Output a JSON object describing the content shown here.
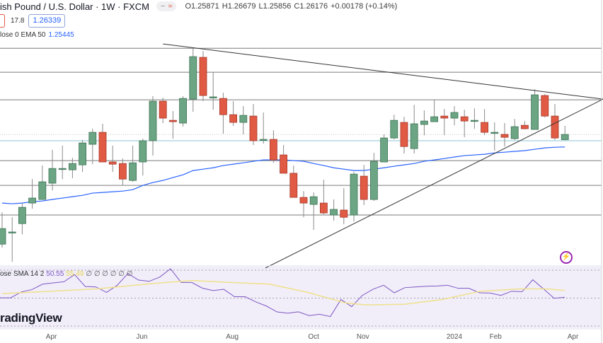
{
  "header": {
    "symbol_title": "ish Pound / U.S. Dollar · 1W · FXCM",
    "status_icons": [
      "minus-icon",
      "approx-icon"
    ],
    "open": "O1.25871",
    "high": "H1.26679",
    "low": "L1.25856",
    "close": "C1.26176",
    "change": "+0.00178 (+0.14%)",
    "spread": "17.8",
    "buy_price": "1.26339"
  },
  "indicators": {
    "ema": {
      "label": "lose 0 EMA 50",
      "value": "1.25445",
      "color": "#2962ff"
    },
    "rsi": {
      "label": "ose SMA 14 2",
      "rsi_value": "50.55",
      "sma_value": "55.49",
      "extra": "∅ ∅ ∅ ∅ ∅ ∅",
      "rsi_color": "#7e57c2",
      "sma_color": "#e8d44d"
    }
  },
  "logo": "radingView",
  "colors": {
    "up": "#6ba583",
    "down": "#e05a44",
    "background_rsi": "#f1eefa"
  },
  "chart_data": {
    "type": "candlestick",
    "ylim": [
      1.1854,
      1.3155
    ],
    "candles": [
      [
        1.1977,
        1.2163,
        1.1957,
        1.2068
      ],
      [
        1.2048,
        1.2134,
        1.1874,
        1.2048
      ],
      [
        1.2097,
        1.2217,
        1.2035,
        1.2192
      ],
      [
        1.2217,
        1.2357,
        1.2184,
        1.2246
      ],
      [
        1.2238,
        1.2436,
        1.2238,
        1.2341
      ],
      [
        1.2333,
        1.2527,
        1.2291,
        1.2419
      ],
      [
        1.2419,
        1.2552,
        1.2357,
        1.2419
      ],
      [
        1.2411,
        1.2481,
        1.2362,
        1.2448
      ],
      [
        1.244,
        1.2585,
        1.2399,
        1.2568
      ],
      [
        1.256,
        1.2651,
        1.2444,
        1.263
      ],
      [
        1.263,
        1.268,
        1.2457,
        1.2457
      ],
      [
        1.2457,
        1.2552,
        1.2399,
        1.2444
      ],
      [
        1.2448,
        1.2477,
        1.232,
        1.2357
      ],
      [
        1.2349,
        1.2552,
        1.2341,
        1.2452
      ],
      [
        1.2457,
        1.2593,
        1.2378,
        1.2581
      ],
      [
        1.2581,
        1.2841,
        1.2494,
        1.2812
      ],
      [
        1.2812,
        1.2832,
        1.2684,
        1.2713
      ],
      [
        1.27,
        1.2754,
        1.2593,
        1.2692
      ],
      [
        1.2684,
        1.2841,
        1.2663,
        1.2828
      ],
      [
        1.2824,
        1.3126,
        1.275,
        1.3072
      ],
      [
        1.3068,
        1.3105,
        1.2812,
        1.2845
      ],
      [
        1.2837,
        1.2981,
        1.2762,
        1.2837
      ],
      [
        1.2828,
        1.2861,
        1.2622,
        1.2733
      ],
      [
        1.2733,
        1.2812,
        1.2667,
        1.2688
      ],
      [
        1.2688,
        1.2783,
        1.2618,
        1.2729
      ],
      [
        1.2725,
        1.2795,
        1.2556,
        1.2581
      ],
      [
        1.2589,
        1.2746,
        1.2564,
        1.2589
      ],
      [
        1.2589,
        1.2642,
        1.2452,
        1.2469
      ],
      [
        1.2498,
        1.2556,
        1.2391,
        1.2391
      ],
      [
        1.2391,
        1.2436,
        1.225,
        1.225
      ],
      [
        1.225,
        1.2287,
        1.2134,
        1.2217
      ],
      [
        1.2209,
        1.2279,
        1.206,
        1.2254
      ],
      [
        1.2217,
        1.2353,
        1.2151,
        1.2159
      ],
      [
        1.2147,
        1.2238,
        1.2114,
        1.218
      ],
      [
        1.2176,
        1.2304,
        1.2093,
        1.2134
      ],
      [
        1.2147,
        1.2399,
        1.211,
        1.2386
      ],
      [
        1.2374,
        1.244,
        1.2205,
        1.2238
      ],
      [
        1.2238,
        1.251,
        1.2229,
        1.2461
      ],
      [
        1.2457,
        1.2618,
        1.2457,
        1.2597
      ],
      [
        1.2597,
        1.2733,
        1.2589,
        1.27
      ],
      [
        1.2688,
        1.2721,
        1.2506,
        1.2547
      ],
      [
        1.2535,
        1.2791,
        1.2506,
        1.268
      ],
      [
        1.2676,
        1.2758,
        1.2613,
        1.2696
      ],
      [
        1.2692,
        1.282,
        1.2692,
        1.2721
      ],
      [
        1.2725,
        1.2766,
        1.2613,
        1.2713
      ],
      [
        1.2713,
        1.2783,
        1.2671,
        1.2746
      ],
      [
        1.2721,
        1.2762,
        1.2601,
        1.2696
      ],
      [
        1.27,
        1.277,
        1.2651,
        1.27
      ],
      [
        1.2688,
        1.2766,
        1.2613,
        1.263
      ],
      [
        1.263,
        1.2688,
        1.2523,
        1.263
      ],
      [
        1.2618,
        1.2684,
        1.2547,
        1.2601
      ],
      [
        1.2593,
        1.2708,
        1.2585,
        1.2663
      ],
      [
        1.2671,
        1.2696,
        1.2647,
        1.2651
      ],
      [
        1.2647,
        1.2882,
        1.2647,
        1.2849
      ],
      [
        1.2845,
        1.2853,
        1.2717,
        1.2725
      ],
      [
        1.2725,
        1.2795,
        1.2585,
        1.2597
      ],
      [
        1.25871,
        1.26679,
        1.25856,
        1.26176
      ]
    ],
    "ema50": [
      1.2217,
      1.2213,
      1.2217,
      1.2225,
      1.2229,
      1.2238,
      1.2246,
      1.2254,
      1.2262,
      1.2275,
      1.2279,
      1.2283,
      1.2287,
      1.2295,
      1.232,
      1.2337,
      1.2349,
      1.2366,
      1.2382,
      1.2407,
      1.2415,
      1.2423,
      1.2436,
      1.2444,
      1.2452,
      1.2461,
      1.2469,
      1.2469,
      1.2469,
      1.2465,
      1.2461,
      1.2448,
      1.2436,
      1.2423,
      1.2415,
      1.2407,
      1.2407,
      1.2415,
      1.2423,
      1.2432,
      1.244,
      1.2448,
      1.2461,
      1.2469,
      1.2477,
      1.2486,
      1.2494,
      1.2498,
      1.2502,
      1.251,
      1.2514,
      1.2519,
      1.2523,
      1.2531,
      1.2539,
      1.2543,
      1.25445
    ],
    "horizontal_levels": [
      1.3121,
      1.2981,
      1.282,
      1.2465,
      1.232,
      1.2147
    ],
    "reference_level": 1.2581,
    "last_price": 1.26176,
    "trendlines": [
      {
        "from": [
          16,
          1.3146
        ],
        "to": [
          59.8,
          1.2824
        ]
      },
      {
        "from": [
          26.2,
          1.1838
        ],
        "to": [
          59.8,
          1.2824
        ]
      }
    ],
    "rsi": {
      "ylim": [
        30,
        70
      ],
      "levels": [
        70,
        50,
        30
      ],
      "values": [
        50.2,
        50.2,
        54.4,
        56.1,
        60,
        60.9,
        61.7,
        66.8,
        58.3,
        58,
        54.1,
        59.2,
        67.6,
        62.9,
        62,
        65.1,
        71,
        61.2,
        61.2,
        57.1,
        55.4,
        56.3,
        51,
        51,
        47.3,
        44.3,
        40.1,
        39.2,
        40.2,
        37.5,
        38.4,
        36.8,
        49,
        43.9,
        51.9,
        56.3,
        59.2,
        53.8,
        57.5,
        58,
        58.5,
        58.7,
        59.2,
        57,
        57,
        53.8,
        53.6,
        51.9,
        54.9,
        54.6,
        63.1,
        56.6,
        49.9,
        50.55
      ],
      "sma": [
        [
          0,
          53.2
        ],
        [
          3.6,
          54.4
        ],
        [
          9.4,
          56.6
        ],
        [
          15.1,
          60.5
        ],
        [
          18.9,
          62.6
        ],
        [
          22.7,
          61.2
        ],
        [
          26.6,
          60
        ],
        [
          30.4,
          54.1
        ],
        [
          34.2,
          46.5
        ],
        [
          36.2,
          45.1
        ],
        [
          40,
          45.6
        ],
        [
          43.8,
          49
        ],
        [
          47.6,
          54.9
        ],
        [
          51.5,
          56.6
        ],
        [
          54.1,
          56.6
        ],
        [
          56,
          55.49
        ]
      ]
    },
    "x_ticks": [
      {
        "label": "Apr",
        "week": 4.9
      },
      {
        "label": "Jun",
        "week": 13.9
      },
      {
        "label": "Aug",
        "week": 22.9
      },
      {
        "label": "Oct",
        "week": 31.0
      },
      {
        "label": "Nov",
        "week": 35.9
      },
      {
        "label": "2024",
        "week": 45.0
      },
      {
        "label": "Feb",
        "week": 49.1
      },
      {
        "label": "Apr",
        "week": 56.8
      }
    ]
  }
}
